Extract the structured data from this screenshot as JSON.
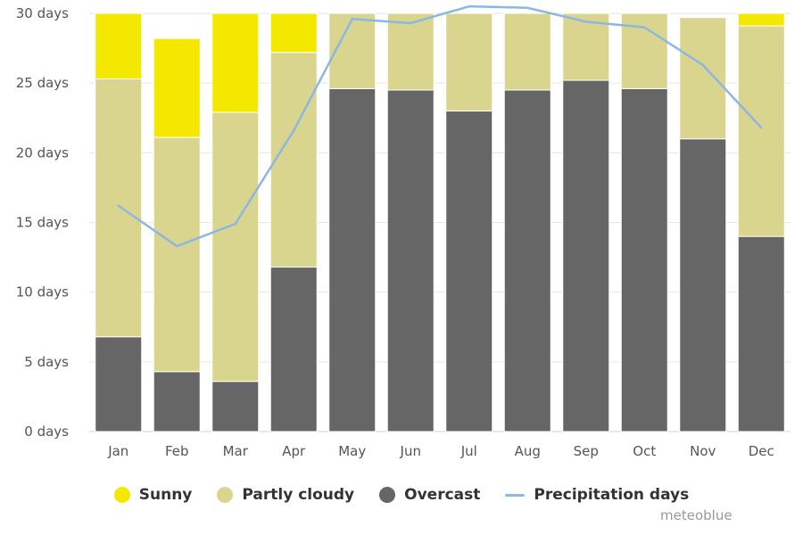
{
  "chart_data": {
    "type": "bar",
    "stacked": true,
    "categories": [
      "Jan",
      "Feb",
      "Mar",
      "Apr",
      "May",
      "Jun",
      "Jul",
      "Aug",
      "Sep",
      "Oct",
      "Nov",
      "Dec"
    ],
    "series": [
      {
        "name": "Overcast",
        "color": "#666666",
        "values": [
          6.8,
          4.3,
          3.6,
          11.8,
          24.6,
          24.5,
          23.0,
          24.5,
          25.2,
          24.6,
          21.0,
          14.0
        ]
      },
      {
        "name": "Partly cloudy",
        "color": "#d9d58f",
        "values": [
          18.5,
          16.8,
          19.3,
          15.4,
          5.4,
          5.5,
          7.0,
          5.5,
          4.8,
          5.4,
          8.7,
          15.1
        ]
      },
      {
        "name": "Sunny",
        "color": "#f5e800",
        "values": [
          5.7,
          7.1,
          8.1,
          3.8,
          0.0,
          0.0,
          0.0,
          0.0,
          0.0,
          0.0,
          0.0,
          1.9
        ]
      }
    ],
    "line_series": {
      "name": "Precipitation days",
      "color": "#8db7e1",
      "values": [
        16.2,
        13.3,
        14.9,
        21.6,
        29.6,
        29.3,
        30.5,
        30.4,
        29.4,
        29.0,
        26.3,
        21.8
      ]
    },
    "y_ticks": [
      "0 days",
      "5 days",
      "10 days",
      "15 days",
      "20 days",
      "25 days",
      "30 days"
    ],
    "ylim": [
      0,
      30
    ],
    "grid": true,
    "legend_position": "bottom"
  },
  "legend": {
    "sunny": "Sunny",
    "partly_cloudy": "Partly cloudy",
    "overcast": "Overcast",
    "precipitation": "Precipitation days"
  },
  "credit": "meteoblue",
  "colors": {
    "sunny": "#f5e800",
    "partly_cloudy": "#d9d58f",
    "overcast": "#666666",
    "precipitation": "#8db7e1"
  }
}
